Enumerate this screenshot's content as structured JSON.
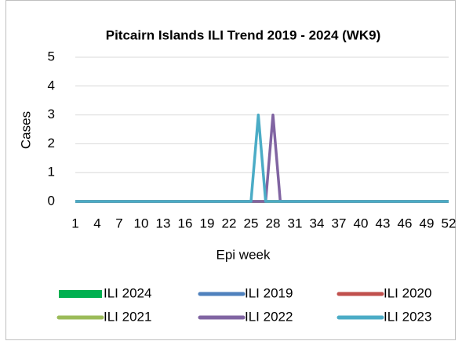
{
  "chart_data": {
    "type": "line",
    "title": "Pitcairn Islands ILI Trend 2019 - 2024 (WK9)",
    "x_label": "Epi week",
    "y_label": "Cases",
    "x": [
      1,
      2,
      3,
      4,
      5,
      6,
      7,
      8,
      9,
      10,
      11,
      12,
      13,
      14,
      15,
      16,
      17,
      18,
      19,
      20,
      21,
      22,
      23,
      24,
      25,
      26,
      27,
      28,
      29,
      30,
      31,
      32,
      33,
      34,
      35,
      36,
      37,
      38,
      39,
      40,
      41,
      42,
      43,
      44,
      45,
      46,
      47,
      48,
      49,
      50,
      51,
      52
    ],
    "xlim": [
      1,
      52
    ],
    "xticks": [
      1,
      4,
      7,
      10,
      13,
      16,
      19,
      22,
      25,
      28,
      31,
      34,
      37,
      40,
      43,
      46,
      49,
      52
    ],
    "ylim": [
      0,
      5
    ],
    "yticks": [
      0,
      1,
      2,
      3,
      4,
      5
    ],
    "grid": true,
    "series": [
      {
        "name": "ILI 2024",
        "color": "#00b050",
        "type": "bar",
        "values": [
          0,
          0,
          0,
          0,
          0,
          0,
          0,
          0,
          0,
          null,
          null,
          null,
          null,
          null,
          null,
          null,
          null,
          null,
          null,
          null,
          null,
          null,
          null,
          null,
          null,
          null,
          null,
          null,
          null,
          null,
          null,
          null,
          null,
          null,
          null,
          null,
          null,
          null,
          null,
          null,
          null,
          null,
          null,
          null,
          null,
          null,
          null,
          null,
          null,
          null,
          null,
          null
        ]
      },
      {
        "name": "ILI 2019",
        "color": "#4f81bd",
        "values": [
          0,
          0,
          0,
          0,
          0,
          0,
          0,
          0,
          0,
          0,
          0,
          0,
          0,
          0,
          0,
          0,
          0,
          0,
          0,
          0,
          0,
          0,
          0,
          0,
          0,
          0,
          0,
          0,
          0,
          0,
          0,
          0,
          0,
          0,
          0,
          0,
          0,
          0,
          0,
          0,
          0,
          0,
          0,
          0,
          0,
          0,
          0,
          0,
          0,
          0,
          0,
          0
        ]
      },
      {
        "name": "ILI 2020",
        "color": "#c0504d",
        "values": [
          0,
          0,
          0,
          0,
          0,
          0,
          0,
          0,
          0,
          0,
          0,
          0,
          0,
          0,
          0,
          0,
          0,
          0,
          0,
          0,
          0,
          0,
          0,
          0,
          0,
          0,
          0,
          0,
          0,
          0,
          0,
          0,
          0,
          0,
          0,
          0,
          0,
          0,
          0,
          0,
          0,
          0,
          0,
          0,
          0,
          0,
          0,
          0,
          0,
          0,
          0,
          0
        ]
      },
      {
        "name": "ILI 2021",
        "color": "#9bbb59",
        "values": [
          0,
          0,
          0,
          0,
          0,
          0,
          0,
          0,
          0,
          0,
          0,
          0,
          0,
          0,
          0,
          0,
          0,
          0,
          0,
          0,
          0,
          0,
          0,
          0,
          0,
          0,
          0,
          0,
          0,
          0,
          0,
          0,
          0,
          0,
          0,
          0,
          0,
          0,
          0,
          0,
          0,
          0,
          0,
          0,
          0,
          0,
          0,
          0,
          0,
          0,
          0,
          0
        ]
      },
      {
        "name": "ILI 2022",
        "color": "#8064a2",
        "values": [
          0,
          0,
          0,
          0,
          0,
          0,
          0,
          0,
          0,
          0,
          0,
          0,
          0,
          0,
          0,
          0,
          0,
          0,
          0,
          0,
          0,
          0,
          0,
          0,
          0,
          0,
          0,
          3,
          0,
          0,
          0,
          0,
          0,
          0,
          0,
          0,
          0,
          0,
          0,
          0,
          0,
          0,
          0,
          0,
          0,
          0,
          0,
          0,
          0,
          0,
          0,
          0
        ]
      },
      {
        "name": "ILI 2023",
        "color": "#4bacc6",
        "values": [
          0,
          0,
          0,
          0,
          0,
          0,
          0,
          0,
          0,
          0,
          0,
          0,
          0,
          0,
          0,
          0,
          0,
          0,
          0,
          0,
          0,
          0,
          0,
          0,
          0,
          3,
          0,
          0,
          0,
          0,
          0,
          0,
          0,
          0,
          0,
          0,
          0,
          0,
          0,
          0,
          0,
          0,
          0,
          0,
          0,
          0,
          0,
          0,
          0,
          0,
          0,
          0
        ]
      }
    ]
  }
}
